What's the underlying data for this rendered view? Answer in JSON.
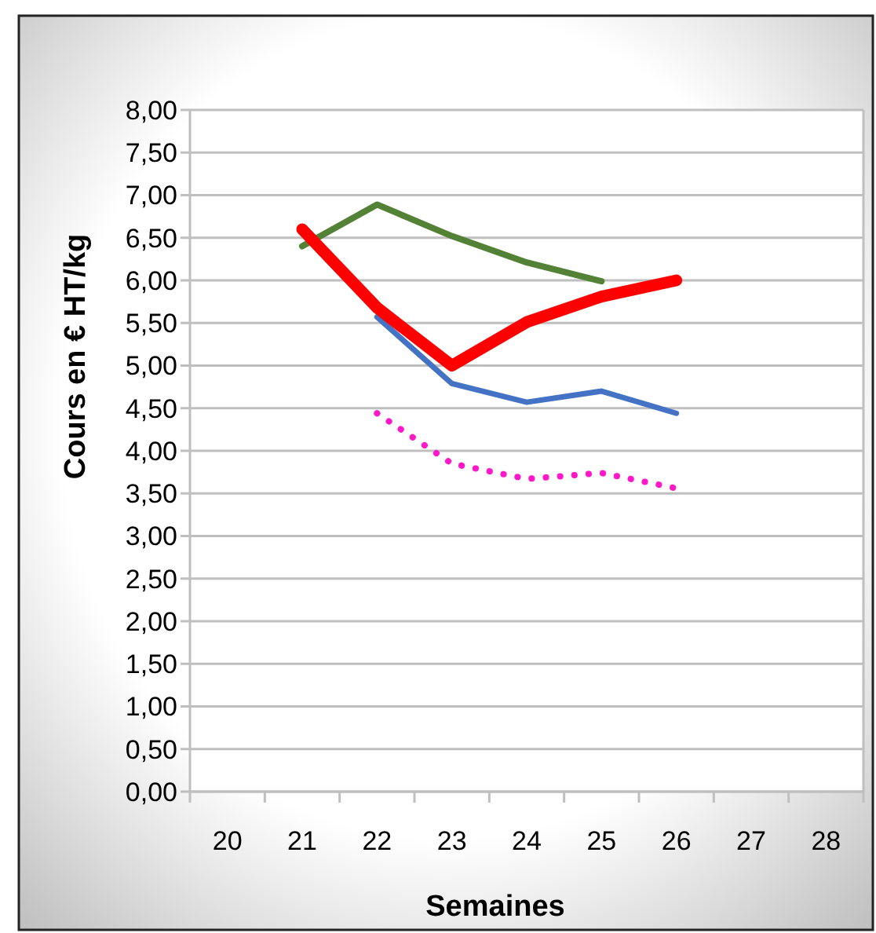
{
  "chart_data": {
    "type": "line",
    "xlabel": "Semaines",
    "ylabel": "Cours en € HT/kg",
    "categories": [
      "20",
      "21",
      "22",
      "23",
      "24",
      "25",
      "26",
      "27",
      "28"
    ],
    "ylim": [
      0,
      8
    ],
    "yticks": [
      {
        "value": 0,
        "label": "0,00"
      },
      {
        "value": 0.5,
        "label": "0,50"
      },
      {
        "value": 1,
        "label": "1,00"
      },
      {
        "value": 1.5,
        "label": "1,50"
      },
      {
        "value": 2,
        "label": "2,00"
      },
      {
        "value": 2.5,
        "label": "2,50"
      },
      {
        "value": 3,
        "label": "3,00"
      },
      {
        "value": 3.5,
        "label": "3,50"
      },
      {
        "value": 4,
        "label": "4,00"
      },
      {
        "value": 4.5,
        "label": "4,50"
      },
      {
        "value": 5,
        "label": "5,00"
      },
      {
        "value": 5.5,
        "label": "5,50"
      },
      {
        "value": 6,
        "label": "6,00"
      },
      {
        "value": 6.5,
        "label": "6,50"
      },
      {
        "value": 7,
        "label": "7,00"
      },
      {
        "value": 7.5,
        "label": "7,50"
      },
      {
        "value": 8,
        "label": "8,00"
      }
    ],
    "grid": "y",
    "marker": "none",
    "series": [
      {
        "color": "#538135",
        "values": [
          null,
          6.4,
          6.89,
          6.52,
          6.21,
          5.99,
          null,
          null,
          null
        ]
      },
      {
        "color": "#4472c4",
        "values": [
          null,
          null,
          5.57,
          4.79,
          4.57,
          4.7,
          4.44,
          null,
          null
        ]
      },
      {
        "color": "#ff19c8",
        "line_style": "dotted",
        "values": [
          null,
          null,
          4.44,
          3.85,
          3.67,
          3.74,
          3.56,
          null,
          null
        ]
      },
      {
        "color": "#ff0000",
        "values": [
          null,
          6.6,
          5.68,
          5.0,
          5.51,
          5.81,
          6.0,
          null,
          null
        ]
      }
    ]
  }
}
